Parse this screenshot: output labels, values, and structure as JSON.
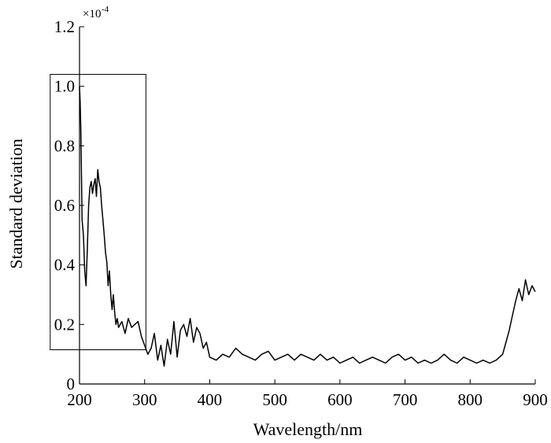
{
  "chart_data": {
    "type": "line",
    "xlabel": "Wavelength/nm",
    "ylabel": "Standard deviation",
    "y_multiplier": {
      "base": "×10",
      "exponent": "-4"
    },
    "xlim": [
      200,
      900
    ],
    "ylim": [
      0,
      1.2
    ],
    "x_ticks": [
      200,
      300,
      400,
      500,
      600,
      700,
      800,
      900
    ],
    "y_ticks": [
      0,
      0.2,
      0.4,
      0.6,
      0.8,
      1.0,
      1.2
    ],
    "x_tick_labels": [
      "200",
      "300",
      "400",
      "500",
      "600",
      "700",
      "800",
      "900"
    ],
    "y_tick_labels": [
      "0",
      "0.2",
      "0.4",
      "0.6",
      "0.8",
      "1.0",
      "1.2"
    ],
    "grid": false,
    "highlight_box": {
      "x_range": [
        155,
        302
      ],
      "y_range": [
        0.115,
        1.04
      ]
    },
    "series": [
      {
        "line_color": "#000000",
        "x": [
          200,
          201,
          202,
          203,
          204,
          206,
          208,
          210,
          212,
          214,
          216,
          218,
          220,
          222,
          224,
          226,
          228,
          230,
          232,
          234,
          236,
          238,
          240,
          242,
          244,
          246,
          248,
          250,
          252,
          254,
          256,
          258,
          260,
          265,
          270,
          275,
          280,
          285,
          290,
          295,
          300,
          305,
          310,
          315,
          320,
          325,
          330,
          335,
          340,
          345,
          350,
          355,
          360,
          365,
          370,
          375,
          380,
          385,
          390,
          395,
          400,
          410,
          420,
          430,
          440,
          450,
          460,
          470,
          480,
          490,
          500,
          510,
          520,
          530,
          540,
          550,
          560,
          570,
          580,
          590,
          600,
          610,
          620,
          630,
          640,
          650,
          660,
          670,
          680,
          690,
          700,
          710,
          720,
          730,
          740,
          750,
          760,
          770,
          780,
          790,
          800,
          810,
          820,
          830,
          840,
          845,
          850,
          855,
          860,
          865,
          870,
          875,
          880,
          885,
          890,
          895,
          900
        ],
        "y": [
          1.0,
          0.95,
          0.85,
          0.7,
          0.55,
          0.5,
          0.38,
          0.33,
          0.45,
          0.6,
          0.66,
          0.68,
          0.64,
          0.67,
          0.69,
          0.63,
          0.72,
          0.68,
          0.66,
          0.6,
          0.55,
          0.5,
          0.44,
          0.41,
          0.33,
          0.38,
          0.3,
          0.25,
          0.3,
          0.24,
          0.2,
          0.22,
          0.19,
          0.21,
          0.17,
          0.22,
          0.19,
          0.2,
          0.21,
          0.16,
          0.13,
          0.1,
          0.12,
          0.17,
          0.08,
          0.13,
          0.06,
          0.15,
          0.1,
          0.21,
          0.09,
          0.18,
          0.2,
          0.16,
          0.22,
          0.14,
          0.19,
          0.17,
          0.12,
          0.14,
          0.09,
          0.08,
          0.1,
          0.09,
          0.12,
          0.1,
          0.09,
          0.08,
          0.1,
          0.11,
          0.08,
          0.09,
          0.1,
          0.08,
          0.1,
          0.09,
          0.08,
          0.1,
          0.08,
          0.09,
          0.07,
          0.08,
          0.09,
          0.07,
          0.08,
          0.09,
          0.08,
          0.07,
          0.09,
          0.1,
          0.08,
          0.09,
          0.07,
          0.08,
          0.07,
          0.08,
          0.1,
          0.08,
          0.07,
          0.09,
          0.08,
          0.07,
          0.08,
          0.07,
          0.08,
          0.09,
          0.1,
          0.14,
          0.18,
          0.23,
          0.28,
          0.32,
          0.28,
          0.35,
          0.3,
          0.33,
          0.31
        ]
      }
    ]
  }
}
